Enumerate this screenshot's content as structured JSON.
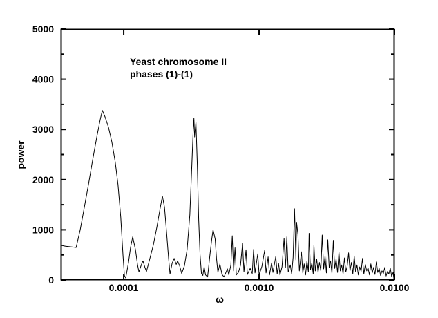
{
  "figure": {
    "background": "#ffffff",
    "line_color": "#000000",
    "annotation": {
      "line1": "Yeast chromosome II",
      "line2": "phases (1)-(1)"
    },
    "ylabel": "power",
    "xlabel": "ω"
  },
  "chart_data": {
    "type": "line",
    "title": "",
    "annotation": [
      "Yeast chromosome II",
      "phases (1)-(1)"
    ],
    "xlabel": "ω",
    "ylabel": "power",
    "x_scale": "log",
    "xlim": [
      3.43e-05,
      0.01
    ],
    "ylim": [
      0,
      5000
    ],
    "grid": false,
    "legend": null,
    "x_ticks": [
      {
        "value": 0.0001,
        "label": "0.0001"
      },
      {
        "value": 0.001,
        "label": "0.0010"
      },
      {
        "value": 0.01,
        "label": "0.0100"
      }
    ],
    "y_ticks": [
      {
        "value": 0,
        "label": "0"
      },
      {
        "value": 1000,
        "label": "1000"
      },
      {
        "value": 2000,
        "label": "2000"
      },
      {
        "value": 3000,
        "label": "3000"
      },
      {
        "value": 4000,
        "label": "4000"
      },
      {
        "value": 5000,
        "label": "5000"
      }
    ],
    "y_minor_ticks": [
      500,
      1500,
      2500,
      3500,
      4500
    ],
    "series": [
      {
        "name": "power spectrum",
        "color": "#000000",
        "points": [
          [
            3.43e-05,
            690
          ],
          [
            3.72e-05,
            672
          ],
          [
            4.09e-05,
            660
          ],
          [
            4.45e-05,
            648
          ],
          [
            4.77e-05,
            1000
          ],
          [
            5.12e-05,
            1450
          ],
          [
            5.49e-05,
            1900
          ],
          [
            5.9e-05,
            2400
          ],
          [
            6.33e-05,
            2850
          ],
          [
            6.71e-05,
            3200
          ],
          [
            6.95e-05,
            3380
          ],
          [
            7.28e-05,
            3250
          ],
          [
            7.71e-05,
            3050
          ],
          [
            8.17e-05,
            2750
          ],
          [
            8.66e-05,
            2350
          ],
          [
            9.07e-05,
            1900
          ],
          [
            9.51e-05,
            1250
          ],
          [
            9.88e-05,
            500
          ],
          [
            0.0001012,
            90
          ],
          [
            0.0001035,
            40
          ],
          [
            0.0001085,
            350
          ],
          [
            0.0001124,
            650
          ],
          [
            0.0001165,
            860
          ],
          [
            0.0001221,
            600
          ],
          [
            0.0001265,
            300
          ],
          [
            0.0001295,
            160
          ],
          [
            0.0001357,
            320
          ],
          [
            0.0001389,
            380
          ],
          [
            0.0001439,
            240
          ],
          [
            0.0001473,
            170
          ],
          [
            0.0001562,
            430
          ],
          [
            0.0001657,
            700
          ],
          [
            0.0001757,
            1050
          ],
          [
            0.0001865,
            1450
          ],
          [
            0.0001932,
            1670
          ],
          [
            0.0002,
            1450
          ],
          [
            0.0002073,
            950
          ],
          [
            0.0002148,
            420
          ],
          [
            0.0002199,
            120
          ],
          [
            0.0002278,
            330
          ],
          [
            0.0002359,
            430
          ],
          [
            0.0002444,
            310
          ],
          [
            0.0002502,
            380
          ],
          [
            0.000259,
            280
          ],
          [
            0.0002682,
            130
          ],
          [
            0.0002808,
            280
          ],
          [
            0.000294,
            600
          ],
          [
            0.0003078,
            1300
          ],
          [
            0.0003186,
            2300
          ],
          [
            0.0003261,
            3000
          ],
          [
            0.0003299,
            3220
          ],
          [
            0.0003338,
            2850
          ],
          [
            0.0003416,
            3150
          ],
          [
            0.0003497,
            2300
          ],
          [
            0.000358,
            1200
          ],
          [
            0.0003664,
            500
          ],
          [
            0.0003751,
            130
          ],
          [
            0.0003839,
            90
          ],
          [
            0.000393,
            260
          ],
          [
            0.0004023,
            100
          ],
          [
            0.0004166,
            60
          ],
          [
            0.0004314,
            450
          ],
          [
            0.0004467,
            800
          ],
          [
            0.0004572,
            1000
          ],
          [
            0.0004734,
            820
          ],
          [
            0.0004846,
            430
          ],
          [
            0.000496,
            150
          ],
          [
            0.0005137,
            320
          ],
          [
            0.000532,
            110
          ],
          [
            0.0005509,
            60
          ],
          [
            0.0005705,
            160
          ],
          [
            0.0005839,
            220
          ],
          [
            0.0005977,
            100
          ],
          [
            0.000619,
            300
          ],
          [
            0.0006336,
            880
          ],
          [
            0.0006485,
            180
          ],
          [
            0.0006638,
            640
          ],
          [
            0.0006795,
            100
          ],
          [
            0.0007037,
            150
          ],
          [
            0.0007288,
            290
          ],
          [
            0.0007548,
            730
          ],
          [
            0.0007727,
            160
          ],
          [
            0.0008002,
            600
          ],
          [
            0.0008193,
            110
          ],
          [
            0.000859,
            230
          ],
          [
            0.0008898,
            130
          ],
          [
            0.0009109,
            610
          ],
          [
            0.0009325,
            140
          ],
          [
            0.0009774,
            520
          ],
          [
            0.0010006,
            100
          ],
          [
            0.0010489,
            270
          ],
          [
            0.0010996,
            590
          ],
          [
            0.0011258,
            140
          ],
          [
            0.0011661,
            460
          ],
          [
            0.0011938,
            100
          ],
          [
            0.0012368,
            340
          ],
          [
            0.0012663,
            150
          ],
          [
            0.0013277,
            470
          ],
          [
            0.0013594,
            120
          ],
          [
            0.0013918,
            330
          ],
          [
            0.0014251,
            100
          ],
          [
            0.0014763,
            260
          ],
          [
            0.0015294,
            830
          ],
          [
            0.001566,
            250
          ],
          [
            0.0016034,
            860
          ],
          [
            0.0016417,
            160
          ],
          [
            0.0017008,
            300
          ],
          [
            0.0017414,
            120
          ],
          [
            0.001783,
            450
          ],
          [
            0.0018256,
            1420
          ],
          [
            0.0018692,
            400
          ],
          [
            0.0018913,
            1150
          ],
          [
            0.0019365,
            900
          ],
          [
            0.0019828,
            180
          ],
          [
            0.0020543,
            560
          ],
          [
            0.0021034,
            140
          ],
          [
            0.0021537,
            320
          ],
          [
            0.0022051,
            100
          ],
          [
            0.0022578,
            380
          ],
          [
            0.0023118,
            160
          ],
          [
            0.0023392,
            930
          ],
          [
            0.0023951,
            200
          ],
          [
            0.0024523,
            340
          ],
          [
            0.0025109,
            120
          ],
          [
            0.0025406,
            700
          ],
          [
            0.0026013,
            180
          ],
          [
            0.0026635,
            420
          ],
          [
            0.0027271,
            150
          ],
          [
            0.0027923,
            350
          ],
          [
            0.002859,
            180
          ],
          [
            0.0029273,
            895
          ],
          [
            0.0029973,
            220
          ],
          [
            0.0030689,
            480
          ],
          [
            0.0031422,
            140
          ],
          [
            0.0032173,
            800
          ],
          [
            0.0032942,
            250
          ],
          [
            0.0033729,
            380
          ],
          [
            0.0034535,
            130
          ],
          [
            0.0035361,
            790
          ],
          [
            0.0036206,
            230
          ],
          [
            0.0037071,
            420
          ],
          [
            0.0037957,
            150
          ],
          [
            0.0038864,
            560
          ],
          [
            0.0039793,
            180
          ],
          [
            0.0040744,
            300
          ],
          [
            0.0041718,
            120
          ],
          [
            0.0042715,
            440
          ],
          [
            0.0043736,
            160
          ],
          [
            0.0044781,
            280
          ],
          [
            0.0045851,
            540
          ],
          [
            0.0046947,
            180
          ],
          [
            0.0048069,
            350
          ],
          [
            0.0049218,
            120
          ],
          [
            0.0050394,
            480
          ],
          [
            0.0051598,
            160
          ],
          [
            0.0052831,
            300
          ],
          [
            0.0054094,
            100
          ],
          [
            0.0055387,
            260
          ],
          [
            0.0056711,
            170
          ],
          [
            0.0058066,
            430
          ],
          [
            0.0059454,
            120
          ],
          [
            0.0060875,
            310
          ],
          [
            0.006233,
            180
          ],
          [
            0.0063819,
            240
          ],
          [
            0.0065345,
            100
          ],
          [
            0.0066906,
            320
          ],
          [
            0.0068505,
            140
          ],
          [
            0.0070143,
            250
          ],
          [
            0.0071819,
            110
          ],
          [
            0.0073535,
            360
          ],
          [
            0.0075293,
            150
          ],
          [
            0.0077092,
            230
          ],
          [
            0.0078935,
            90
          ],
          [
            0.0080821,
            180
          ],
          [
            0.0082753,
            130
          ],
          [
            0.0084731,
            250
          ],
          [
            0.0086756,
            80
          ],
          [
            0.0088829,
            170
          ],
          [
            0.0090952,
            120
          ],
          [
            0.0093126,
            240
          ],
          [
            0.0095352,
            70
          ],
          [
            0.0097631,
            150
          ],
          [
            0.0098788,
            40
          ],
          [
            0.01,
            10
          ]
        ]
      }
    ]
  }
}
